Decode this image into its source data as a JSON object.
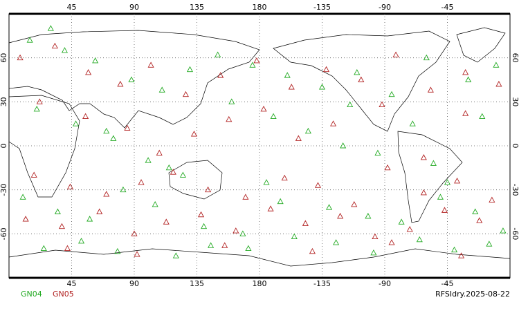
{
  "chart_data": {
    "type": "scatter",
    "xlim": [
      0,
      360
    ],
    "ylim": [
      -90,
      90
    ],
    "xticks": [
      45,
      90,
      135,
      180,
      {
        "value": 225,
        "label": "-135"
      },
      {
        "value": 270,
        "label": "-90"
      },
      {
        "value": 315,
        "label": "-45"
      }
    ],
    "yticks": [
      -60,
      -30,
      0,
      30,
      60
    ],
    "grid": true,
    "series": [
      {
        "name": "GN04",
        "color": "#22aa22",
        "x": [
          15,
          40,
          62,
          88,
          110,
          130,
          150,
          175,
          200,
          225,
          250,
          275,
          300,
          330,
          350,
          20,
          48,
          75,
          100,
          125,
          160,
          190,
          215,
          240,
          265,
          290,
          315,
          340,
          10,
          35,
          58,
          82,
          105,
          140,
          168,
          195,
          230,
          258,
          282,
          310,
          335,
          355,
          25,
          52,
          78,
          120,
          145,
          172,
          205,
          235,
          262,
          295,
          320,
          345,
          30,
          70,
          115,
          185,
          245,
          305
        ],
        "values": [
          72,
          65,
          58,
          45,
          38,
          52,
          62,
          55,
          48,
          40,
          50,
          35,
          60,
          45,
          55,
          25,
          15,
          5,
          -10,
          -20,
          30,
          20,
          10,
          0,
          -5,
          15,
          -25,
          20,
          -35,
          -45,
          -50,
          -30,
          -40,
          -55,
          -60,
          -38,
          -42,
          -48,
          -52,
          -35,
          -45,
          -58,
          -70,
          -65,
          -72,
          -75,
          -68,
          -70,
          -62,
          -66,
          -73,
          -64,
          -71,
          -67,
          80,
          10,
          -15,
          -25,
          28,
          -12
        ]
      },
      {
        "name": "GN05",
        "color": "#b22222",
        "x": [
          8,
          33,
          57,
          80,
          102,
          127,
          152,
          178,
          203,
          228,
          253,
          278,
          303,
          328,
          352,
          18,
          44,
          70,
          95,
          118,
          143,
          170,
          198,
          222,
          248,
          272,
          298,
          322,
          347,
          12,
          38,
          65,
          90,
          113,
          138,
          163,
          188,
          213,
          238,
          263,
          288,
          313,
          338,
          22,
          55,
          85,
          108,
          133,
          158,
          183,
          208,
          233,
          268,
          298,
          328,
          42,
          92,
          155,
          218,
          275,
          325
        ],
        "values": [
          60,
          68,
          50,
          42,
          55,
          35,
          48,
          58,
          40,
          52,
          45,
          62,
          38,
          50,
          42,
          -20,
          -28,
          -33,
          -25,
          -18,
          -30,
          -35,
          -22,
          -27,
          -40,
          -15,
          -32,
          -24,
          -37,
          -50,
          -55,
          -45,
          -60,
          -52,
          -47,
          -58,
          -43,
          -53,
          -48,
          -62,
          -57,
          -44,
          -51,
          30,
          20,
          12,
          -5,
          8,
          18,
          25,
          5,
          15,
          28,
          -8,
          22,
          -70,
          -74,
          -68,
          -72,
          -66,
          -75
        ]
      }
    ],
    "footer": "RFSIdry.2025-08-22"
  }
}
